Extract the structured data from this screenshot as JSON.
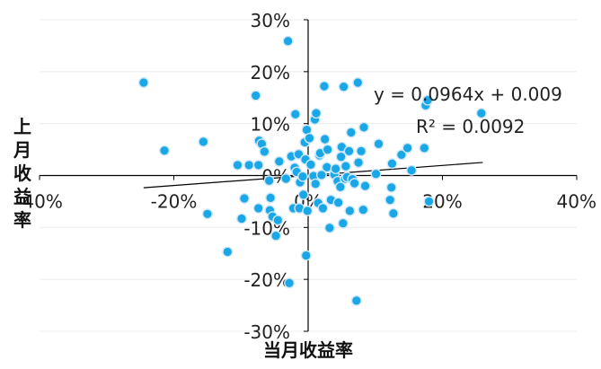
{
  "chart_data": {
    "type": "scatter",
    "xlabel": "当月收益率",
    "ylabel": "上月收益率",
    "xlim": [
      -40,
      40
    ],
    "ylim": [
      -30,
      30
    ],
    "x_ticks": [
      {
        "value": -40,
        "label": "-40%"
      },
      {
        "value": -20,
        "label": "-20%"
      },
      {
        "value": 0,
        "label": "0%"
      },
      {
        "value": 20,
        "label": "20%"
      },
      {
        "value": 40,
        "label": "40%"
      }
    ],
    "y_ticks": [
      {
        "value": 30,
        "label": "30%"
      },
      {
        "value": 20,
        "label": "20%"
      },
      {
        "value": 10,
        "label": "10%"
      },
      {
        "value": 0,
        "label": "0%"
      },
      {
        "value": -10,
        "label": "-10%"
      },
      {
        "value": -20,
        "label": "-20%"
      },
      {
        "value": -30,
        "label": "-30%"
      }
    ],
    "grid": true,
    "marker_color": "#1aa7e8",
    "marker_edge_color": "#cfe7f5",
    "trendline": {
      "type": "linear",
      "slope": 0.0964,
      "intercept": 0.009,
      "x_range": [
        -24.5,
        26
      ],
      "equation": "y = 0.0964x + 0.009",
      "r_squared": "R² = 0.0092"
    },
    "points": [
      {
        "x": -24.5,
        "y": 17.9
      },
      {
        "x": -21.4,
        "y": 4.8
      },
      {
        "x": -15.6,
        "y": 6.5
      },
      {
        "x": -15.0,
        "y": -7.4
      },
      {
        "x": -12.0,
        "y": -14.7
      },
      {
        "x": -10.5,
        "y": 2.0
      },
      {
        "x": -9.9,
        "y": -8.3
      },
      {
        "x": -9.5,
        "y": -4.4
      },
      {
        "x": -8.8,
        "y": 2.0
      },
      {
        "x": -7.8,
        "y": 15.4
      },
      {
        "x": -7.4,
        "y": 2.0
      },
      {
        "x": -7.4,
        "y": -6.3
      },
      {
        "x": -7.3,
        "y": 6.7
      },
      {
        "x": -6.9,
        "y": 6.1
      },
      {
        "x": -6.5,
        "y": 4.6
      },
      {
        "x": -5.8,
        "y": -1.0
      },
      {
        "x": -5.7,
        "y": -6.7
      },
      {
        "x": -5.6,
        "y": -4.3
      },
      {
        "x": -5.3,
        "y": -7.9
      },
      {
        "x": -4.8,
        "y": -11.6
      },
      {
        "x": -4.5,
        "y": -8.6
      },
      {
        "x": -4.3,
        "y": 2.7
      },
      {
        "x": -3.3,
        "y": -0.6
      },
      {
        "x": -3.0,
        "y": 25.9
      },
      {
        "x": -2.8,
        "y": -20.7
      },
      {
        "x": -2.5,
        "y": 3.7
      },
      {
        "x": -2.2,
        "y": -6.3
      },
      {
        "x": -2.0,
        "y": 1.5
      },
      {
        "x": -1.9,
        "y": 11.8
      },
      {
        "x": -1.7,
        "y": 0.7
      },
      {
        "x": -1.4,
        "y": 4.1
      },
      {
        "x": -1.3,
        "y": -6.3
      },
      {
        "x": -1.2,
        "y": -1.3
      },
      {
        "x": -0.8,
        "y": -0.2
      },
      {
        "x": -0.7,
        "y": -3.7
      },
      {
        "x": -0.5,
        "y": 6.4
      },
      {
        "x": -0.4,
        "y": 3.1
      },
      {
        "x": -0.3,
        "y": -15.4
      },
      {
        "x": -0.2,
        "y": 8.8
      },
      {
        "x": -0.1,
        "y": -6.8
      },
      {
        "x": 0.2,
        "y": 7.2
      },
      {
        "x": 0.4,
        "y": 2.1
      },
      {
        "x": 0.8,
        "y": -0.1
      },
      {
        "x": 1.0,
        "y": 10.8
      },
      {
        "x": 1.1,
        "y": -1.6
      },
      {
        "x": 1.2,
        "y": 12.0
      },
      {
        "x": 1.5,
        "y": -5.3
      },
      {
        "x": 1.7,
        "y": 3.9
      },
      {
        "x": 1.8,
        "y": 4.3
      },
      {
        "x": 2.0,
        "y": 0.1
      },
      {
        "x": 2.2,
        "y": -6.3
      },
      {
        "x": 2.4,
        "y": 17.2
      },
      {
        "x": 2.5,
        "y": 7.0
      },
      {
        "x": 2.8,
        "y": 1.6
      },
      {
        "x": 2.9,
        "y": 5.0
      },
      {
        "x": 3.2,
        "y": -10.1
      },
      {
        "x": 3.4,
        "y": -4.7
      },
      {
        "x": 3.9,
        "y": 0.2
      },
      {
        "x": 4.1,
        "y": 1.3
      },
      {
        "x": 4.4,
        "y": -1.1
      },
      {
        "x": 4.5,
        "y": -5.2
      },
      {
        "x": 4.8,
        "y": -2.2
      },
      {
        "x": 4.9,
        "y": 3.6
      },
      {
        "x": 5.0,
        "y": 5.5
      },
      {
        "x": 5.2,
        "y": -9.2
      },
      {
        "x": 5.3,
        "y": 17.1
      },
      {
        "x": 5.5,
        "y": -0.6
      },
      {
        "x": 5.6,
        "y": 1.8
      },
      {
        "x": 5.8,
        "y": -0.3
      },
      {
        "x": 6.1,
        "y": 4.7
      },
      {
        "x": 6.2,
        "y": -6.8
      },
      {
        "x": 6.4,
        "y": 8.3
      },
      {
        "x": 6.6,
        "y": -0.7
      },
      {
        "x": 6.9,
        "y": -1.5
      },
      {
        "x": 7.2,
        "y": -24.1
      },
      {
        "x": 7.4,
        "y": 17.9
      },
      {
        "x": 7.5,
        "y": 2.5
      },
      {
        "x": 7.9,
        "y": 4.7
      },
      {
        "x": 8.2,
        "y": -6.6
      },
      {
        "x": 8.3,
        "y": 9.3
      },
      {
        "x": 8.5,
        "y": -2.0
      },
      {
        "x": 10.1,
        "y": 0.3
      },
      {
        "x": 10.5,
        "y": 6.1
      },
      {
        "x": 12.2,
        "y": -4.7
      },
      {
        "x": 12.4,
        "y": -2.3
      },
      {
        "x": 12.5,
        "y": 2.3
      },
      {
        "x": 12.7,
        "y": -7.3
      },
      {
        "x": 13.9,
        "y": 4.0
      },
      {
        "x": 14.8,
        "y": 5.3
      },
      {
        "x": 15.4,
        "y": 1.0
      },
      {
        "x": 17.3,
        "y": 5.3
      },
      {
        "x": 17.5,
        "y": 13.5
      },
      {
        "x": 17.8,
        "y": 14.5
      },
      {
        "x": 18.0,
        "y": -5.0
      },
      {
        "x": 25.8,
        "y": 12.0
      }
    ]
  }
}
